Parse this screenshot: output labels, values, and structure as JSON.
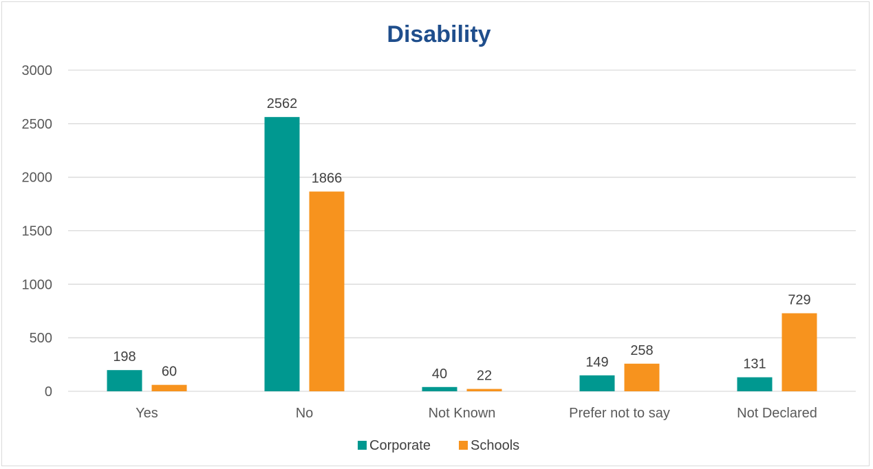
{
  "chart_data": {
    "type": "bar",
    "title": "Disability",
    "xlabel": "",
    "ylabel": "",
    "categories": [
      "Yes",
      "No",
      "Not Known",
      "Prefer not to say",
      "Not Declared"
    ],
    "series": [
      {
        "name": "Corporate",
        "values": [
          198,
          2562,
          40,
          149,
          131
        ],
        "color": "#009890"
      },
      {
        "name": "Schools",
        "values": [
          60,
          1866,
          22,
          258,
          729
        ],
        "color": "#F7931E"
      }
    ],
    "ylim": [
      0,
      3000
    ],
    "yticks": [
      0,
      500,
      1000,
      1500,
      2000,
      2500,
      3000
    ],
    "grid": true,
    "legend_position": "bottom",
    "title_color": "#1F4E8C",
    "grid_color": "#d9d9d9"
  }
}
